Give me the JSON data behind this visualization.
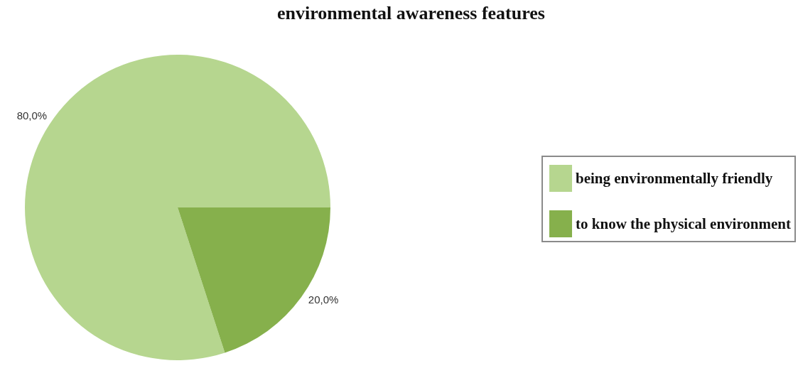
{
  "chart_data": {
    "type": "pie",
    "title": "environmental awareness features",
    "categories": [
      "being environmentally friendly",
      "to know the physical environment"
    ],
    "values": [
      80,
      20
    ],
    "colors": [
      "#b6d68f",
      "#86b04c"
    ],
    "value_labels": [
      "80,0%",
      "20,0%"
    ],
    "legend": "right"
  }
}
